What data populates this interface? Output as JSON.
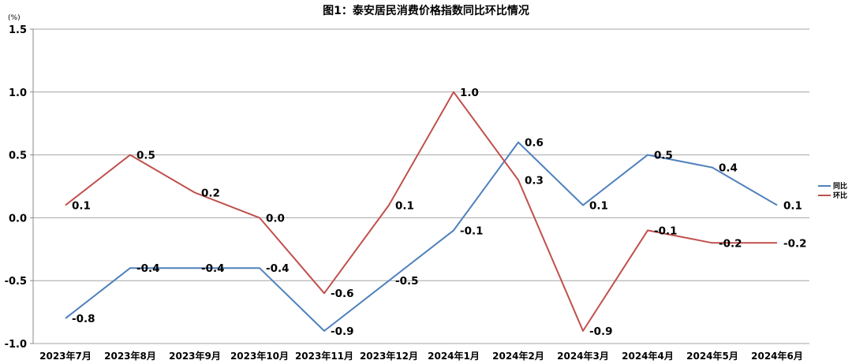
{
  "chart_data": {
    "type": "line",
    "title": "图1：泰安居民消费价格指数同比环比情况",
    "unit": "(%)",
    "categories": [
      "2023年7月",
      "2023年8月",
      "2023年9月",
      "2023年10月",
      "2023年11月",
      "2023年12月",
      "2024年1月",
      "2024年2月",
      "2024年3月",
      "2024年4月",
      "2024年5月",
      "2024年6月"
    ],
    "ylim": [
      -1.0,
      1.5
    ],
    "yticks": [
      1.5,
      1.0,
      0.5,
      0.0,
      -0.5,
      -1.0
    ],
    "ytick_labels": [
      "1.5",
      "1.0",
      "0.5",
      "0.0",
      "-0.5",
      "-1.0"
    ],
    "grid": true,
    "legend_position": "right",
    "series": [
      {
        "name": "同比",
        "color": "#4f81bd",
        "values": [
          -0.8,
          -0.4,
          -0.4,
          -0.4,
          -0.9,
          -0.5,
          -0.1,
          0.6,
          0.1,
          0.5,
          0.4,
          0.1
        ],
        "labels": [
          "-0.8",
          "-0.4",
          "-0.4",
          "-0.4",
          "-0.9",
          "-0.5",
          "-0.1",
          "0.6",
          "0.1",
          "0.5",
          "0.4",
          "0.1"
        ]
      },
      {
        "name": "环比",
        "color": "#c0504d",
        "values": [
          0.1,
          0.5,
          0.2,
          0.0,
          -0.6,
          0.1,
          1.0,
          0.3,
          -0.9,
          -0.1,
          -0.2,
          -0.2
        ],
        "labels": [
          "0.1",
          "0.5",
          "0.2",
          "0.0",
          "-0.6",
          "0.1",
          "1.0",
          "0.3",
          "-0.9",
          "-0.1",
          "-0.2",
          "-0.2"
        ]
      }
    ]
  }
}
